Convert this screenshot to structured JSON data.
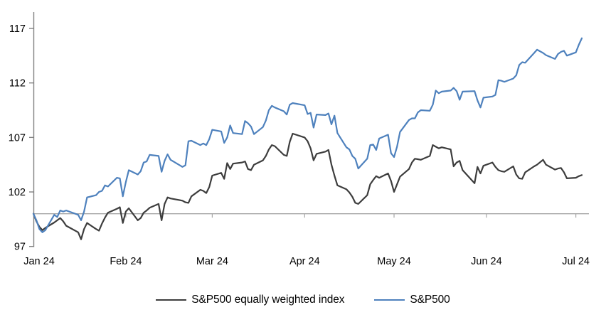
{
  "chart_data": {
    "type": "line",
    "title": "",
    "xlabel": "",
    "ylabel": "",
    "y_ticks": [
      97,
      102,
      107,
      112,
      117
    ],
    "ylim": [
      96.1,
      118.6
    ],
    "baseline_value": 100,
    "grid": "off",
    "legend_position": "bottom-center",
    "x_tick_labels": [
      "Jan 24",
      "Feb 24",
      "Mar 24",
      "Apr 24",
      "May 24",
      "Jun 24",
      "Jul 24"
    ],
    "x_tick_dates": [
      "2024-01-01",
      "2024-02-01",
      "2024-03-01",
      "2024-04-01",
      "2024-05-01",
      "2024-06-01",
      "2024-07-01"
    ],
    "x_dates": [
      "2024-01-01",
      "2024-01-02",
      "2024-01-03",
      "2024-01-04",
      "2024-01-05",
      "2024-01-08",
      "2024-01-09",
      "2024-01-10",
      "2024-01-11",
      "2024-01-12",
      "2024-01-16",
      "2024-01-17",
      "2024-01-18",
      "2024-01-19",
      "2024-01-22",
      "2024-01-23",
      "2024-01-24",
      "2024-01-25",
      "2024-01-26",
      "2024-01-29",
      "2024-01-30",
      "2024-01-31",
      "2024-02-01",
      "2024-02-02",
      "2024-02-05",
      "2024-02-06",
      "2024-02-07",
      "2024-02-08",
      "2024-02-09",
      "2024-02-12",
      "2024-02-13",
      "2024-02-14",
      "2024-02-15",
      "2024-02-16",
      "2024-02-20",
      "2024-02-21",
      "2024-02-22",
      "2024-02-23",
      "2024-02-26",
      "2024-02-27",
      "2024-02-28",
      "2024-02-29",
      "2024-03-01",
      "2024-03-04",
      "2024-03-05",
      "2024-03-06",
      "2024-03-07",
      "2024-03-08",
      "2024-03-11",
      "2024-03-12",
      "2024-03-13",
      "2024-03-14",
      "2024-03-15",
      "2024-03-18",
      "2024-03-19",
      "2024-03-20",
      "2024-03-21",
      "2024-03-22",
      "2024-03-25",
      "2024-03-26",
      "2024-03-27",
      "2024-03-28",
      "2024-04-01",
      "2024-04-02",
      "2024-04-03",
      "2024-04-04",
      "2024-04-05",
      "2024-04-08",
      "2024-04-09",
      "2024-04-10",
      "2024-04-11",
      "2024-04-12",
      "2024-04-15",
      "2024-04-16",
      "2024-04-17",
      "2024-04-18",
      "2024-04-19",
      "2024-04-22",
      "2024-04-23",
      "2024-04-24",
      "2024-04-25",
      "2024-04-26",
      "2024-04-29",
      "2024-04-30",
      "2024-05-01",
      "2024-05-02",
      "2024-05-03",
      "2024-05-06",
      "2024-05-07",
      "2024-05-08",
      "2024-05-09",
      "2024-05-10",
      "2024-05-13",
      "2024-05-14",
      "2024-05-15",
      "2024-05-16",
      "2024-05-17",
      "2024-05-20",
      "2024-05-21",
      "2024-05-22",
      "2024-05-23",
      "2024-05-24",
      "2024-05-28",
      "2024-05-29",
      "2024-05-30",
      "2024-05-31",
      "2024-06-03",
      "2024-06-04",
      "2024-06-05",
      "2024-06-06",
      "2024-06-07",
      "2024-06-10",
      "2024-06-11",
      "2024-06-12",
      "2024-06-13",
      "2024-06-14",
      "2024-06-17",
      "2024-06-18",
      "2024-06-20",
      "2024-06-21",
      "2024-06-24",
      "2024-06-25",
      "2024-06-26",
      "2024-06-27",
      "2024-06-28",
      "2024-07-01",
      "2024-07-02",
      "2024-07-03"
    ],
    "series": [
      {
        "name": "S&P500 equally weighted index",
        "color": "#3d3d3d",
        "values": [
          100.0,
          99.3,
          98.8,
          98.5,
          98.7,
          99.2,
          99.4,
          99.6,
          99.3,
          98.9,
          98.3,
          97.65,
          98.6,
          99.15,
          98.6,
          98.45,
          99.1,
          99.65,
          100.1,
          100.45,
          100.6,
          99.15,
          100.2,
          100.5,
          99.4,
          99.6,
          100.1,
          100.3,
          100.55,
          100.9,
          99.4,
          100.9,
          101.5,
          101.4,
          101.2,
          101.05,
          101.0,
          101.6,
          102.2,
          102.1,
          101.9,
          102.45,
          103.5,
          103.75,
          103.2,
          104.65,
          104.1,
          104.6,
          104.7,
          104.8,
          104.1,
          104.0,
          104.5,
          104.9,
          105.3,
          105.9,
          106.3,
          106.2,
          105.4,
          105.3,
          106.6,
          107.35,
          107.0,
          106.65,
          106.0,
          104.9,
          105.5,
          105.7,
          105.85,
          104.5,
          103.5,
          102.6,
          102.25,
          101.95,
          101.55,
          101.0,
          100.9,
          101.7,
          102.7,
          103.1,
          103.45,
          103.3,
          103.7,
          103.0,
          102.0,
          102.7,
          103.4,
          104.1,
          104.7,
          105.05,
          105.0,
          104.95,
          105.3,
          106.3,
          106.15,
          106.0,
          106.1,
          105.9,
          104.35,
          104.7,
          104.85,
          104.0,
          102.8,
          104.3,
          103.7,
          104.4,
          104.7,
          104.3,
          104.0,
          103.9,
          103.85,
          104.35,
          103.6,
          103.25,
          103.2,
          103.8,
          104.35,
          104.5,
          104.95,
          104.5,
          104.05,
          104.15,
          104.2,
          103.8,
          103.25,
          103.3,
          103.45,
          103.55
        ]
      },
      {
        "name": "S&P500",
        "color": "#4e81bd",
        "values": [
          100.0,
          99.4,
          98.6,
          98.3,
          98.5,
          99.9,
          99.7,
          100.3,
          100.2,
          100.3,
          99.9,
          99.4,
          100.2,
          101.5,
          101.7,
          102.0,
          102.1,
          102.6,
          102.5,
          103.3,
          103.25,
          101.6,
          102.9,
          104.0,
          103.6,
          103.9,
          104.7,
          104.8,
          105.4,
          105.3,
          103.85,
          104.85,
          105.45,
          104.95,
          104.3,
          104.45,
          106.65,
          106.7,
          106.3,
          106.45,
          106.3,
          106.85,
          107.7,
          107.55,
          106.5,
          107.0,
          108.1,
          107.4,
          107.3,
          108.5,
          108.3,
          108.0,
          107.3,
          107.95,
          108.55,
          109.5,
          109.9,
          109.75,
          109.4,
          109.1,
          110.0,
          110.15,
          109.95,
          109.15,
          109.25,
          107.9,
          109.1,
          109.05,
          109.2,
          108.2,
          109.0,
          107.4,
          106.1,
          105.9,
          105.3,
          105.05,
          104.15,
          105.05,
          106.3,
          106.35,
          105.85,
          106.9,
          107.25,
          105.55,
          105.2,
          106.15,
          107.5,
          108.6,
          108.75,
          108.75,
          109.3,
          109.5,
          109.45,
          110.0,
          111.3,
          111.05,
          111.2,
          111.3,
          111.55,
          111.25,
          110.45,
          111.2,
          111.25,
          110.4,
          109.75,
          110.65,
          110.75,
          110.9,
          112.25,
          112.2,
          112.1,
          112.4,
          112.7,
          113.65,
          113.9,
          113.85,
          114.75,
          115.05,
          114.75,
          114.55,
          114.2,
          114.65,
          114.85,
          114.95,
          114.5,
          114.8,
          115.5,
          116.1
        ]
      }
    ],
    "colors": {
      "axis_line": "#808080",
      "baseline": "#a6a6a6",
      "tick": "#808080",
      "label": "#000000",
      "background": "#ffffff"
    }
  }
}
